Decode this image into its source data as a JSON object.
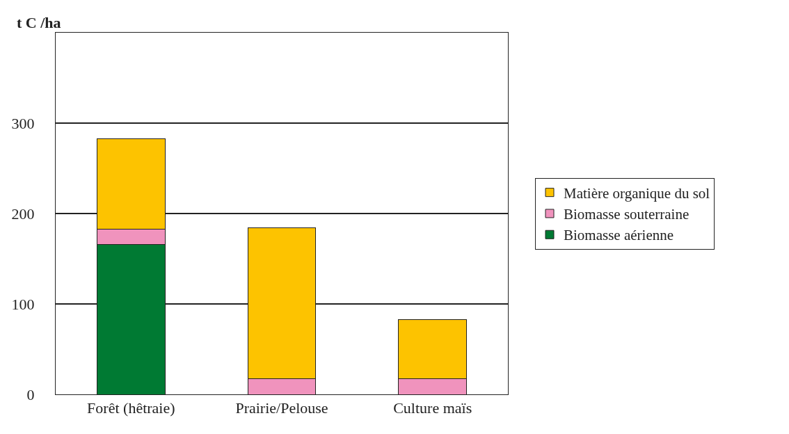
{
  "chart_data": {
    "type": "bar",
    "stacked": true,
    "ylabel": "t C /ha",
    "categories": [
      "Forêt (hêtraie)",
      "Prairie/Pelouse",
      "Culture maïs"
    ],
    "series": [
      {
        "name": "Biomasse aérienne",
        "color": "#007a33",
        "values": [
          166,
          0,
          0
        ]
      },
      {
        "name": "Biomasse souterraine",
        "color": "#f093bd",
        "values": [
          17,
          17,
          17
        ]
      },
      {
        "name": "Matière organique du sol",
        "color": "#fdc300",
        "values": [
          100,
          167,
          66
        ]
      }
    ],
    "ylim": [
      0,
      400
    ],
    "yticks": [
      0,
      100,
      200,
      300
    ],
    "grid": "y",
    "legend": "right"
  }
}
